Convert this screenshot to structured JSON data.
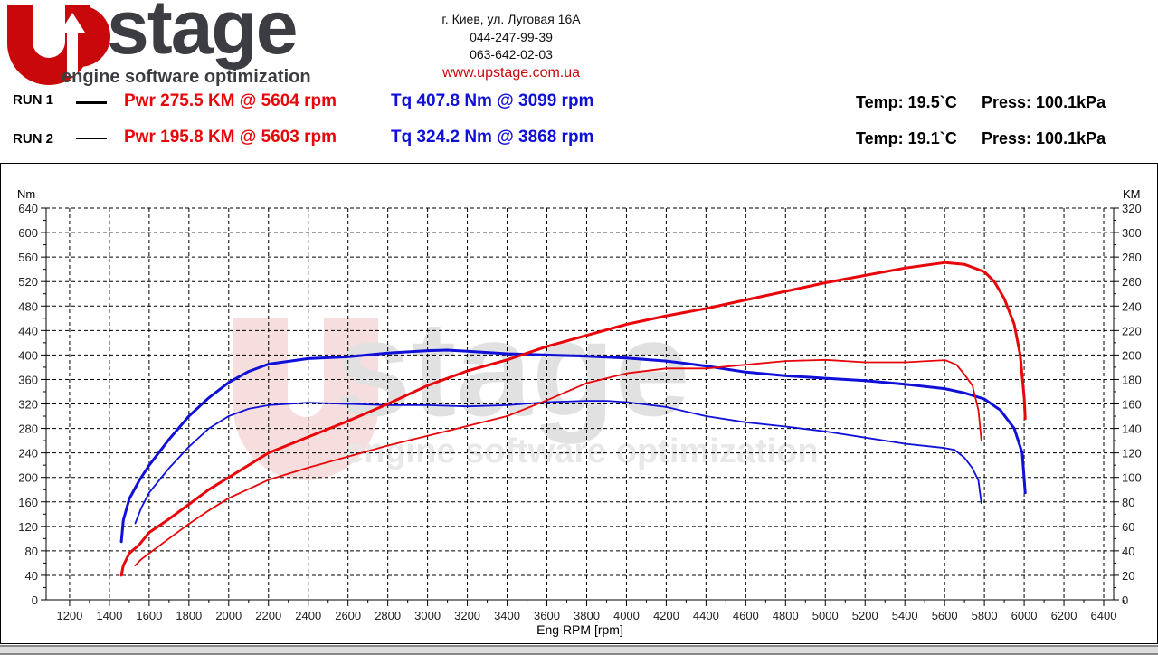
{
  "header": {
    "logo_text": "UPstage",
    "logo_tagline": "engine software optimization",
    "address": "г. Киев, ул. Луговая 16А",
    "phone1": "044-247-99-39",
    "phone2": "063-642-02-03",
    "website": "www.upstage.com.ua"
  },
  "runs": [
    {
      "label": "RUN 1",
      "power": "Pwr  275.5 KM @ 5604 rpm",
      "torque": "Tq 407.8 Nm @ 3099 rpm",
      "temp": "Temp: 19.5`C",
      "press": "Press: 100.1kPa"
    },
    {
      "label": "RUN 2",
      "power": "Pwr  195.8 KM @ 5603 rpm",
      "torque": "Tq 324.2 Nm @ 3868 rpm",
      "temp": "Temp: 19.1`C",
      "press": "Press: 100.1kPa"
    }
  ],
  "colors": {
    "power": "#e8060a",
    "torque": "#1010d8"
  },
  "chart_data": {
    "type": "line",
    "xlabel": "Eng RPM [rpm]",
    "ylabel_left": "Nm",
    "ylabel_right": "KM",
    "xlim": [
      1082,
      6450
    ],
    "ylim_left": [
      0,
      640
    ],
    "ylim_right": [
      0,
      320
    ],
    "grid": true,
    "x_ticks": [
      1200,
      1400,
      1600,
      1800,
      2000,
      2200,
      2400,
      2600,
      2800,
      3000,
      3200,
      3400,
      3600,
      3800,
      4000,
      4200,
      4400,
      4600,
      4800,
      5000,
      5200,
      5400,
      5600,
      5800,
      6000,
      6200,
      6400
    ],
    "y_ticks_left": [
      0,
      40,
      80,
      120,
      160,
      200,
      240,
      280,
      320,
      360,
      400,
      440,
      480,
      520,
      560,
      600,
      640
    ],
    "y_ticks_right": [
      0,
      20,
      40,
      60,
      80,
      100,
      120,
      140,
      160,
      180,
      200,
      220,
      240,
      260,
      280,
      300,
      320
    ],
    "series": [
      {
        "name": "RUN 1 Torque (Nm)",
        "axis": "left",
        "color": "#1010d8",
        "width": 3,
        "x": [
          1460,
          1470,
          1500,
          1550,
          1600,
          1700,
          1800,
          1900,
          2000,
          2100,
          2200,
          2400,
          2600,
          2800,
          3000,
          3100,
          3200,
          3400,
          3600,
          3800,
          4000,
          4200,
          4400,
          4600,
          4800,
          5000,
          5200,
          5400,
          5600,
          5700,
          5800,
          5880,
          5950,
          5990,
          6005
        ],
        "y": [
          95,
          130,
          165,
          195,
          220,
          262,
          300,
          330,
          355,
          373,
          385,
          394,
          397,
          403,
          407,
          408,
          406,
          402,
          400,
          398,
          395,
          390,
          382,
          372,
          366,
          362,
          358,
          352,
          345,
          338,
          328,
          310,
          280,
          240,
          175
        ]
      },
      {
        "name": "RUN 2 Torque (Nm)",
        "axis": "left",
        "color": "#1010d8",
        "width": 1.8,
        "x": [
          1530,
          1560,
          1600,
          1700,
          1800,
          1900,
          2000,
          2100,
          2200,
          2400,
          2600,
          2800,
          3000,
          3200,
          3400,
          3600,
          3800,
          3900,
          4000,
          4200,
          4400,
          4600,
          4800,
          5000,
          5200,
          5400,
          5600,
          5650,
          5700,
          5740,
          5770,
          5785
        ],
        "y": [
          125,
          150,
          175,
          215,
          250,
          280,
          300,
          312,
          318,
          322,
          320,
          318,
          318,
          316,
          318,
          323,
          325,
          325,
          323,
          315,
          300,
          290,
          283,
          275,
          265,
          255,
          248,
          245,
          232,
          215,
          195,
          158
        ]
      },
      {
        "name": "RUN 1 Power (KM)",
        "axis": "right",
        "color": "#e8060a",
        "width": 3,
        "x": [
          1460,
          1470,
          1500,
          1550,
          1600,
          1700,
          1800,
          1900,
          2000,
          2200,
          2400,
          2600,
          2800,
          3000,
          3200,
          3400,
          3600,
          3800,
          4000,
          4200,
          4400,
          4600,
          4800,
          5000,
          5200,
          5400,
          5604,
          5700,
          5800,
          5850,
          5900,
          5950,
          5980,
          6000,
          6005
        ],
        "y": [
          20,
          28,
          38,
          45,
          55,
          66,
          78,
          90,
          100,
          120,
          133,
          146,
          160,
          175,
          187,
          196,
          207,
          216,
          225,
          232,
          238,
          245,
          252,
          259,
          265,
          271,
          275.5,
          274,
          268,
          260,
          246,
          225,
          200,
          165,
          148
        ]
      },
      {
        "name": "RUN 2 Power (KM)",
        "axis": "right",
        "color": "#e8060a",
        "width": 1.8,
        "x": [
          1530,
          1560,
          1600,
          1700,
          1800,
          1900,
          2000,
          2200,
          2400,
          2600,
          2800,
          3000,
          3200,
          3400,
          3600,
          3800,
          4000,
          4200,
          4400,
          4600,
          4800,
          5000,
          5200,
          5400,
          5603,
          5660,
          5700,
          5740,
          5770,
          5785
        ],
        "y": [
          28,
          33,
          38,
          50,
          62,
          73,
          83,
          98,
          108,
          117,
          126,
          134,
          142,
          150,
          163,
          177,
          185,
          189,
          189,
          192,
          195,
          196,
          194,
          194,
          195.8,
          192,
          184,
          175,
          155,
          130
        ]
      }
    ]
  }
}
